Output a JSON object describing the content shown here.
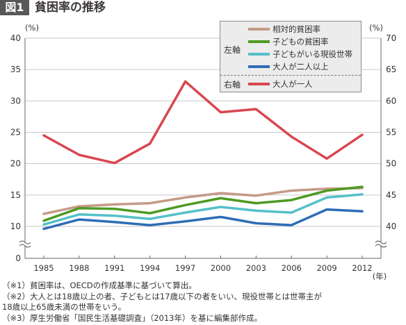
{
  "chart_data": {
    "type": "line",
    "figure_label": "図1",
    "title": "貧困率の推移",
    "x": [
      1985,
      1988,
      1991,
      1994,
      1997,
      2000,
      2003,
      2006,
      2009,
      2012
    ],
    "x_unit": "(年)",
    "y_left": {
      "unit": "(%)",
      "ticks": [
        40,
        35,
        30,
        25,
        20,
        15,
        10,
        0
      ],
      "range": [
        0,
        40
      ],
      "axis_break": true
    },
    "y_right": {
      "unit": "(%)",
      "ticks": [
        70,
        65,
        60,
        55,
        50,
        45,
        40
      ],
      "range": [
        40,
        70
      ],
      "axis_break": true
    },
    "grid": true,
    "legend": {
      "placement": "top-right",
      "left_axis_label": "左軸",
      "right_axis_label": "右軸"
    },
    "series": [
      {
        "name": "相対的貧困率",
        "axis": "left",
        "color": "#c49a88",
        "values": [
          12.0,
          13.2,
          13.5,
          13.7,
          14.6,
          15.3,
          14.9,
          15.7,
          16.0,
          16.1
        ]
      },
      {
        "name": "子どもの貧困率",
        "axis": "left",
        "color": "#4d9a22",
        "values": [
          10.9,
          12.9,
          12.8,
          12.1,
          13.4,
          14.5,
          13.7,
          14.2,
          15.7,
          16.3
        ]
      },
      {
        "name": "子どもがいる現役世帯",
        "axis": "left",
        "color": "#55c0c8",
        "values": [
          10.3,
          11.9,
          11.7,
          11.2,
          12.2,
          13.1,
          12.5,
          12.2,
          14.6,
          15.1
        ]
      },
      {
        "name": "大人が二人以上",
        "axis": "left",
        "color": "#2e6cb6",
        "values": [
          9.6,
          11.1,
          10.7,
          10.2,
          10.8,
          11.5,
          10.5,
          10.2,
          12.7,
          12.4
        ]
      },
      {
        "name": "大人が一人",
        "axis": "right",
        "color": "#d94650",
        "values": [
          54.5,
          51.4,
          50.1,
          53.2,
          63.1,
          58.2,
          58.7,
          54.3,
          50.8,
          54.6
        ]
      }
    ]
  },
  "footnotes": [
    "（※1）貧困率は、OECDの作成基準に基づいて算出。",
    "（※2）大人とは18歳以上の者、子どもとは17歳以下の者をいい、現役世帯とは世帯主が",
    "18歳以上65歳未満の世帯をいう。",
    "（※3）厚生労働省「国民生活基礎調査」（2013年）を基に編集部作成。"
  ]
}
